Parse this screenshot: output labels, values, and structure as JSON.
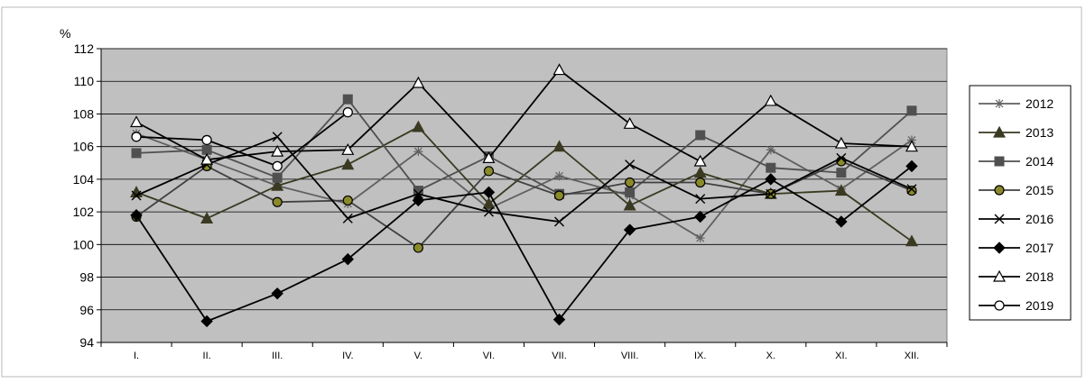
{
  "chart_data": {
    "type": "line",
    "title": "",
    "xlabel": "",
    "ylabel": "%",
    "ylim": [
      94,
      112
    ],
    "yticks": [
      94,
      96,
      98,
      100,
      102,
      104,
      106,
      108,
      110,
      112
    ],
    "grid": true,
    "legend_position": "right",
    "plot_background": "#c0c0c0",
    "categories": [
      "I.",
      "II.",
      "III.",
      "IV.",
      "V.",
      "VI.",
      "VII.",
      "VIII.",
      "IX.",
      "X.",
      "XI.",
      "XII."
    ],
    "series": [
      {
        "name": "2012",
        "marker": "star",
        "color": "#606060",
        "values": [
          106.8,
          105.2,
          103.6,
          102.5,
          105.7,
          102.2,
          104.2,
          103.0,
          100.4,
          105.8,
          103.4,
          106.4
        ]
      },
      {
        "name": "2013",
        "marker": "triangle-filled",
        "color": "#3a3a22",
        "values": [
          103.2,
          101.6,
          103.6,
          104.9,
          107.2,
          102.5,
          106.0,
          102.4,
          104.4,
          103.1,
          103.3,
          100.2
        ]
      },
      {
        "name": "2014",
        "marker": "square-filled",
        "color": "#505050",
        "values": [
          105.6,
          105.8,
          104.1,
          108.9,
          103.3,
          105.4,
          103.1,
          103.2,
          106.7,
          104.7,
          104.4,
          108.2
        ]
      },
      {
        "name": "2015",
        "marker": "circle-filled",
        "color": "#404040",
        "marker_fill": "#8a8a2a",
        "values": [
          101.7,
          104.8,
          102.6,
          102.7,
          99.8,
          104.5,
          103.0,
          103.8,
          103.8,
          103.1,
          105.1,
          103.3
        ]
      },
      {
        "name": "2016",
        "marker": "x",
        "color": "#000000",
        "values": [
          103.0,
          104.9,
          106.6,
          101.6,
          103.1,
          102.0,
          101.4,
          104.9,
          102.8,
          103.1,
          105.3,
          103.4
        ]
      },
      {
        "name": "2017",
        "marker": "diamond-filled",
        "color": "#000000",
        "values": [
          101.8,
          95.3,
          97.0,
          99.1,
          102.7,
          103.2,
          95.4,
          100.9,
          101.7,
          104.0,
          101.4,
          104.8
        ]
      },
      {
        "name": "2018",
        "marker": "triangle-open",
        "color": "#000000",
        "values": [
          107.5,
          105.2,
          105.7,
          105.8,
          109.9,
          105.3,
          110.7,
          107.4,
          105.1,
          108.8,
          106.2,
          106.0
        ]
      },
      {
        "name": "2019",
        "marker": "circle-open",
        "color": "#000000",
        "values": [
          106.6,
          106.4,
          104.8,
          108.1,
          null,
          null,
          null,
          null,
          null,
          null,
          null,
          null
        ]
      }
    ]
  }
}
